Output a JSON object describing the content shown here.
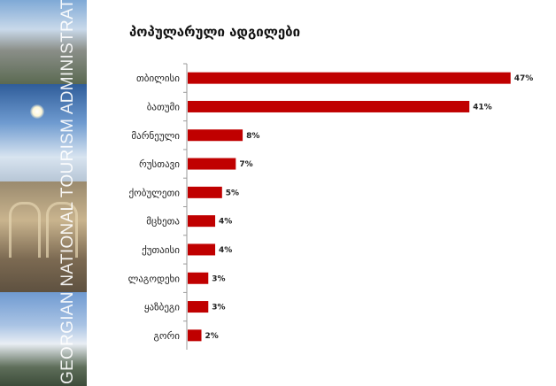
{
  "side_banner": {
    "text": "GEORGIAN NATIONAL TOURISM ADMINISTRATION"
  },
  "chart_data": {
    "type": "bar",
    "orientation": "horizontal",
    "title": "პოპულარული ადგილები",
    "categories": [
      "თბილისი",
      "ბათუმი",
      "მარნეული",
      "რუსთავი",
      "ქობულეთი",
      "მცხეთა",
      "ქუთაისი",
      "ლაგოდეხი",
      "ყაზბეგი",
      "გორი"
    ],
    "values": [
      47,
      41,
      8,
      7,
      5,
      4,
      4,
      3,
      3,
      2
    ],
    "value_labels": [
      "47%",
      "41%",
      "8%",
      "7%",
      "5%",
      "4%",
      "4%",
      "3%",
      "3%",
      "2%"
    ],
    "unit": "%",
    "xlim": [
      0,
      50
    ],
    "grid": false,
    "legend": "none",
    "bar_color": "#c00000"
  }
}
